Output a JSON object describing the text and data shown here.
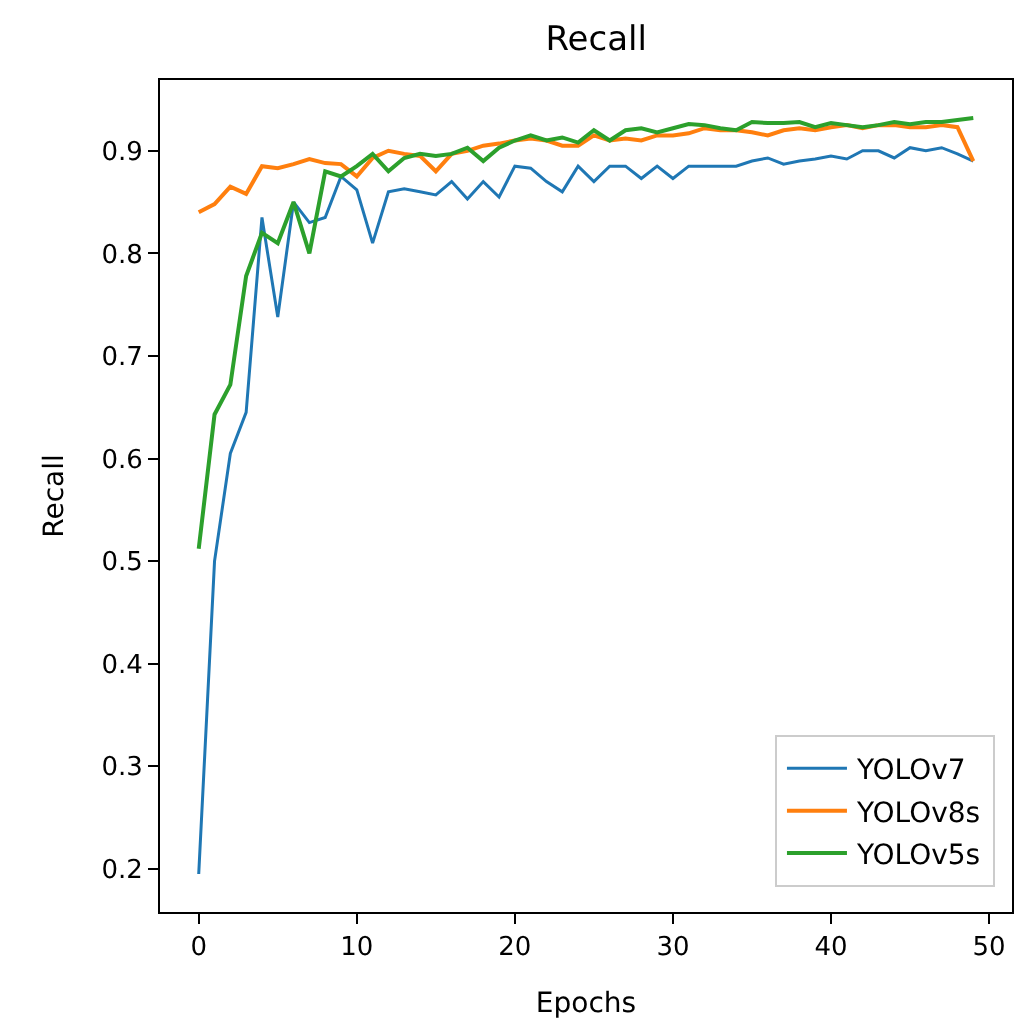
{
  "chart_data": {
    "type": "line",
    "title": "Recall",
    "xlabel": "Epochs",
    "ylabel": "Recall",
    "x": [
      0,
      1,
      2,
      3,
      4,
      5,
      6,
      7,
      8,
      9,
      10,
      11,
      12,
      13,
      14,
      15,
      16,
      17,
      18,
      19,
      20,
      21,
      22,
      23,
      24,
      25,
      26,
      27,
      28,
      29,
      30,
      31,
      32,
      33,
      34,
      35,
      36,
      37,
      38,
      39,
      40,
      41,
      42,
      43,
      44,
      45,
      46,
      47,
      48,
      49
    ],
    "series": [
      {
        "name": "YOLOv7",
        "color": "#1f77b4",
        "values": [
          0.195,
          0.5,
          0.605,
          0.645,
          0.835,
          0.738,
          0.85,
          0.83,
          0.835,
          0.875,
          0.862,
          0.81,
          0.86,
          0.863,
          0.86,
          0.857,
          0.87,
          0.853,
          0.87,
          0.855,
          0.885,
          0.883,
          0.87,
          0.86,
          0.885,
          0.87,
          0.885,
          0.885,
          0.873,
          0.885,
          0.873,
          0.885,
          0.885,
          0.885,
          0.885,
          0.89,
          0.893,
          0.887,
          0.89,
          0.892,
          0.895,
          0.892,
          0.9,
          0.9,
          0.893,
          0.903,
          0.9,
          0.903,
          0.897,
          0.89
        ]
      },
      {
        "name": "YOLOv8s",
        "color": "#ff7f0e",
        "values": [
          0.84,
          0.848,
          0.865,
          0.858,
          0.885,
          0.883,
          0.887,
          0.892,
          0.888,
          0.887,
          0.875,
          0.893,
          0.9,
          0.897,
          0.895,
          0.88,
          0.897,
          0.9,
          0.905,
          0.907,
          0.91,
          0.912,
          0.91,
          0.905,
          0.905,
          0.915,
          0.91,
          0.912,
          0.91,
          0.915,
          0.915,
          0.917,
          0.922,
          0.92,
          0.92,
          0.918,
          0.915,
          0.92,
          0.922,
          0.92,
          0.923,
          0.925,
          0.922,
          0.925,
          0.925,
          0.923,
          0.923,
          0.925,
          0.923,
          0.89
        ]
      },
      {
        "name": "YOLOv5s",
        "color": "#2ca02c",
        "values": [
          0.512,
          0.643,
          0.672,
          0.778,
          0.82,
          0.81,
          0.85,
          0.8,
          0.88,
          0.875,
          0.885,
          0.897,
          0.88,
          0.893,
          0.897,
          0.895,
          0.897,
          0.903,
          0.89,
          0.903,
          0.91,
          0.915,
          0.91,
          0.913,
          0.908,
          0.92,
          0.91,
          0.92,
          0.922,
          0.918,
          0.922,
          0.926,
          0.925,
          0.922,
          0.92,
          0.928,
          0.927,
          0.927,
          0.928,
          0.923,
          0.927,
          0.925,
          0.923,
          0.925,
          0.928,
          0.926,
          0.928,
          0.928,
          0.93,
          0.932
        ]
      }
    ],
    "xlim": [
      -2.45,
      51.45
    ],
    "xticks": [
      0,
      10,
      20,
      30,
      40,
      50
    ],
    "ylim": [
      0.158,
      0.969
    ],
    "yticks": [
      0.2,
      0.3,
      0.4,
      0.5,
      0.6,
      0.7,
      0.8,
      0.9
    ],
    "legend": "bottom right",
    "marker": "none",
    "line_style": "solid"
  }
}
